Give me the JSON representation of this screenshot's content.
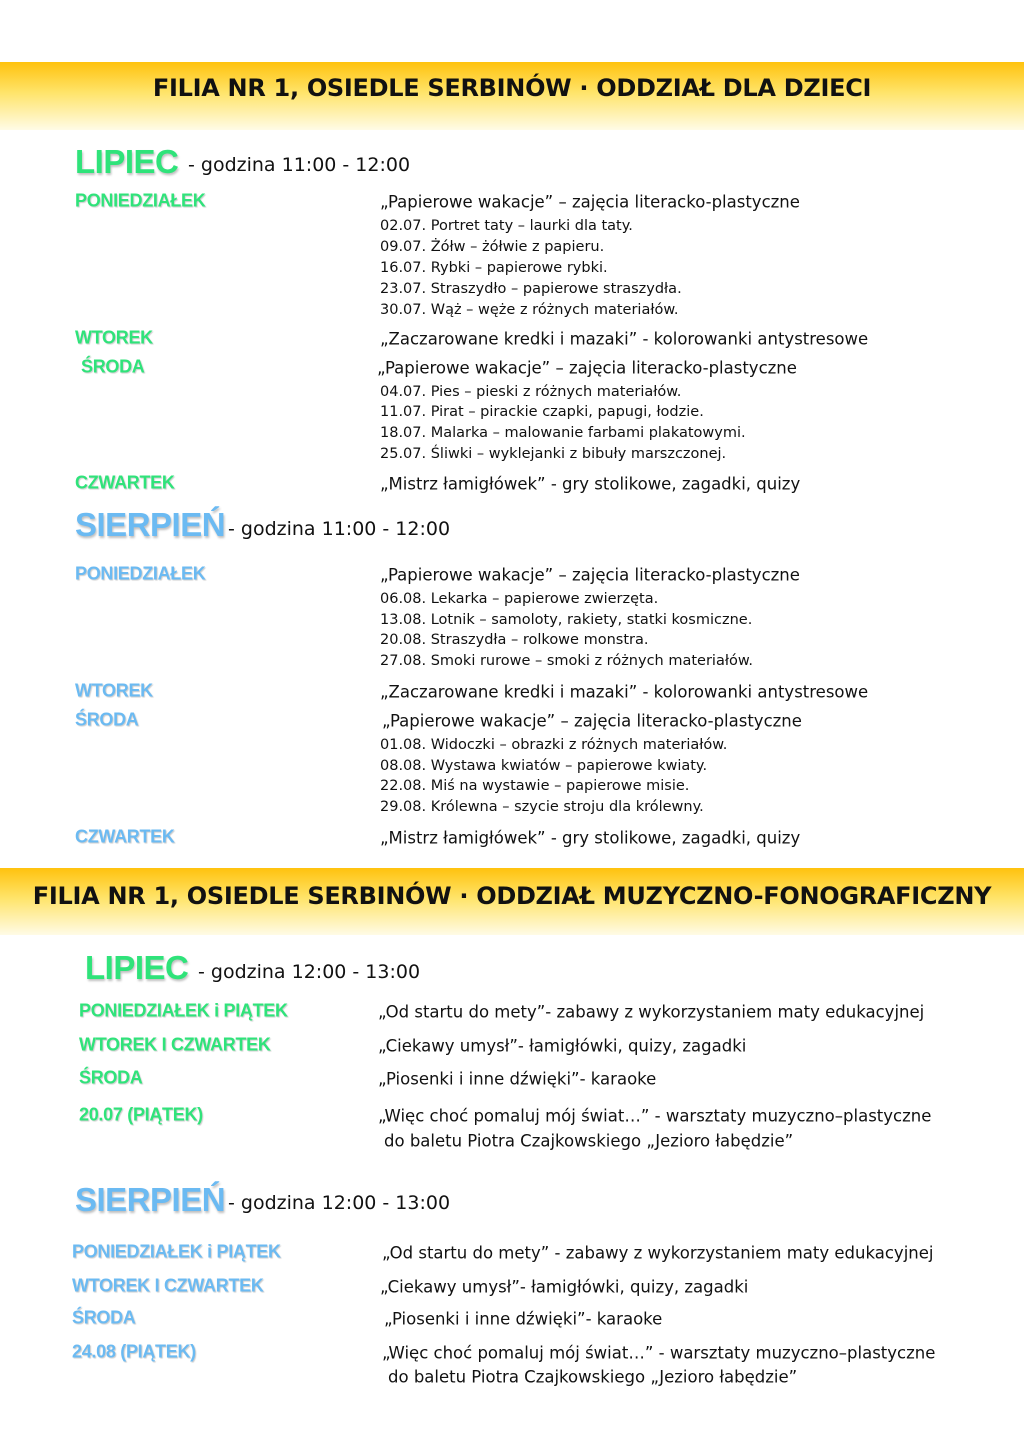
{
  "colors": {
    "header_band": "#ffc20e",
    "july": "#2fe37a",
    "august": "#6bbaf2"
  },
  "sections": [
    {
      "title": "FILIA NR 1, OSIEDLE SERBINÓW · ODDZIAŁ DLA DZIECI",
      "months": [
        {
          "name": "LIPIEC",
          "hours": "- godzina 11:00 - 12:00",
          "rows": [
            {
              "day": "PONIEDZIAŁEK",
              "activity": "„Papierowe wakacje” – zajęcia literacko-plastyczne",
              "items": [
                "02.07. Portret taty – laurki dla taty.",
                "09.07. Żółw – żółwie z papieru.",
                "16.07.  Rybki – papierowe rybki.",
                "23.07. Straszydło – papierowe straszydła.",
                "30.07. Wąż – węże z różnych materiałów."
              ]
            },
            {
              "day": "WTOREK",
              "activity": "„Zaczarowane kredki i mazaki” - kolorowanki antystresowe"
            },
            {
              "day": "ŚRODA",
              "activity": "„Papierowe wakacje” – zajęcia literacko-plastyczne",
              "items": [
                "04.07. Pies – pieski z różnych materiałów.",
                "11.07.  Pirat – pirackie czapki, papugi, łodzie.",
                "18.07. Malarka – malowanie farbami plakatowymi.",
                "25.07. Śliwki – wyklejanki z bibuły marszczonej."
              ]
            },
            {
              "day": "CZWARTEK",
              "activity": "„Mistrz łamigłówek” - gry stolikowe, zagadki, quizy"
            }
          ]
        },
        {
          "name": "SIERPIEŃ",
          "hours": "- godzina 11:00 - 12:00",
          "rows": [
            {
              "day": "PONIEDZIAŁEK",
              "activity": "„Papierowe wakacje” – zajęcia literacko-plastyczne",
              "items": [
                "06.08. Lekarka – papierowe zwierzęta.",
                "13.08. Lotnik – samoloty, rakiety, statki kosmiczne.",
                "20.08. Straszydła – rolkowe monstra.",
                "27.08. Smoki rurowe – smoki z różnych materiałów."
              ]
            },
            {
              "day": "WTOREK",
              "activity": "„Zaczarowane kredki i mazaki” - kolorowanki antystresowe"
            },
            {
              "day": "ŚRODA",
              "activity": "„Papierowe wakacje” – zajęcia literacko-plastyczne",
              "items": [
                "01.08. Widoczki – obrazki z różnych materiałów.",
                "08.08. Wystawa kwiatów – papierowe kwiaty.",
                "22.08. Miś na wystawie – papierowe misie.",
                "29.08. Królewna – szycie stroju dla królewny."
              ]
            },
            {
              "day": "CZWARTEK",
              "activity": "„Mistrz łamigłówek” - gry stolikowe, zagadki, quizy"
            }
          ]
        }
      ]
    },
    {
      "title": "FILIA NR 1, OSIEDLE SERBINÓW · ODDZIAŁ MUZYCZNO-FONOGRAFICZNY",
      "months": [
        {
          "name": "LIPIEC",
          "hours": "- godzina 12:00 - 13:00",
          "rows": [
            {
              "day": "PONIEDZIAŁEK i PIĄTEK",
              "activity": "„Od startu do mety”- zabawy z wykorzystaniem maty edukacyjnej"
            },
            {
              "day": "WTOREK I CZWARTEK",
              "activity": "„Ciekawy umysł”- łamigłówki, quizy, zagadki"
            },
            {
              "day": "ŚRODA",
              "activity": "„Piosenki i inne dźwięki”- karaoke"
            },
            {
              "day": "20.07 (PIĄTEK)",
              "activity": "„Więc choć pomaluj mój świat…” - warsztaty muzyczno–plastyczne",
              "activity2": "do baletu Piotra Czajkowskiego „Jezioro łabędzie”"
            }
          ]
        },
        {
          "name": "SIERPIEŃ",
          "hours": "- godzina 12:00 - 13:00",
          "rows": [
            {
              "day": "PONIEDZIAŁEK i PIĄTEK",
              "activity": "„Od startu do mety” - zabawy z wykorzystaniem maty edukacyjnej"
            },
            {
              "day": "WTOREK I CZWARTEK",
              "activity": "„Ciekawy umysł”- łamigłówki, quizy, zagadki"
            },
            {
              "day": "ŚRODA",
              "activity": "„Piosenki i inne dźwięki”- karaoke"
            },
            {
              "day": "24.08 (PIĄTEK)",
              "activity": "„Więc choć pomaluj mój świat…” - warsztaty muzyczno–plastyczne",
              "activity2": "do baletu Piotra Czajkowskiego „Jezioro łabędzie”"
            }
          ]
        }
      ]
    }
  ]
}
